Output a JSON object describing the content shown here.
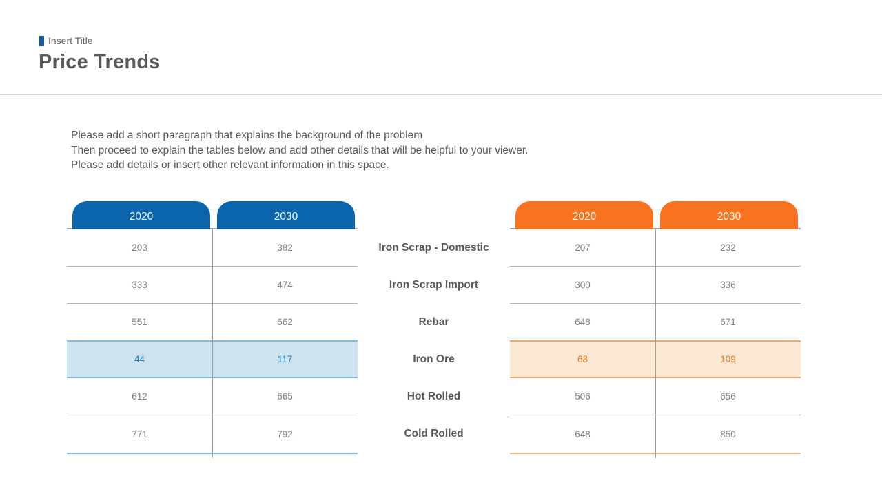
{
  "header": {
    "kicker": "Insert Title",
    "title": "Price Trends"
  },
  "intro": {
    "line1": "Please add a short paragraph that explains the background of the problem",
    "line2": "Then proceed to explain the tables below and add other details that will be helpful to your viewer.",
    "line3": "Please add details or insert other relevant information in this space."
  },
  "row_labels": [
    "Iron Scrap - Domestic",
    "Iron Scrap Import",
    "Rebar",
    "Iron Ore",
    "Hot Rolled",
    "Cold Rolled"
  ],
  "left_table": {
    "columns": [
      "2020",
      "2030"
    ],
    "rows": [
      [
        203,
        382
      ],
      [
        333,
        474
      ],
      [
        551,
        662
      ],
      [
        44,
        117
      ],
      [
        612,
        665
      ],
      [
        771,
        792
      ]
    ],
    "highlight_row_index": 3
  },
  "right_table": {
    "columns": [
      "2020",
      "2030"
    ],
    "rows": [
      [
        207,
        232
      ],
      [
        300,
        336
      ],
      [
        648,
        671
      ],
      [
        68,
        109
      ],
      [
        506,
        656
      ],
      [
        648,
        850
      ]
    ],
    "highlight_row_index": 3
  },
  "colors": {
    "left_accent": "#0a65ad",
    "right_accent": "#f8721f",
    "left_highlight_bg": "#cde3f0",
    "left_highlight_border": "#85bbdb",
    "left_highlight_text": "#1a7ab8",
    "right_highlight_bg": "#fce9d4",
    "right_highlight_border": "#f1a76c",
    "right_highlight_text": "#e87523",
    "kicker_square": "#15599d",
    "heading_text": "#595959",
    "value_text": "#7f7f7f"
  },
  "chart_data": [
    {
      "type": "table",
      "title": "Price table (blue, left)",
      "columns": [
        "2020",
        "2030"
      ],
      "row_labels": [
        "Iron Scrap - Domestic",
        "Iron Scrap Import",
        "Rebar",
        "Iron Ore",
        "Hot Rolled",
        "Cold Rolled"
      ],
      "rows": [
        [
          203,
          382
        ],
        [
          333,
          474
        ],
        [
          551,
          662
        ],
        [
          44,
          117
        ],
        [
          612,
          665
        ],
        [
          771,
          792
        ]
      ],
      "highlighted_row": "Iron Ore"
    },
    {
      "type": "table",
      "title": "Price table (orange, right)",
      "columns": [
        "2020",
        "2030"
      ],
      "row_labels": [
        "Iron Scrap - Domestic",
        "Iron Scrap Import",
        "Rebar",
        "Iron Ore",
        "Hot Rolled",
        "Cold Rolled"
      ],
      "rows": [
        [
          207,
          232
        ],
        [
          300,
          336
        ],
        [
          648,
          671
        ],
        [
          68,
          109
        ],
        [
          506,
          656
        ],
        [
          648,
          850
        ]
      ],
      "highlighted_row": "Iron Ore"
    }
  ]
}
